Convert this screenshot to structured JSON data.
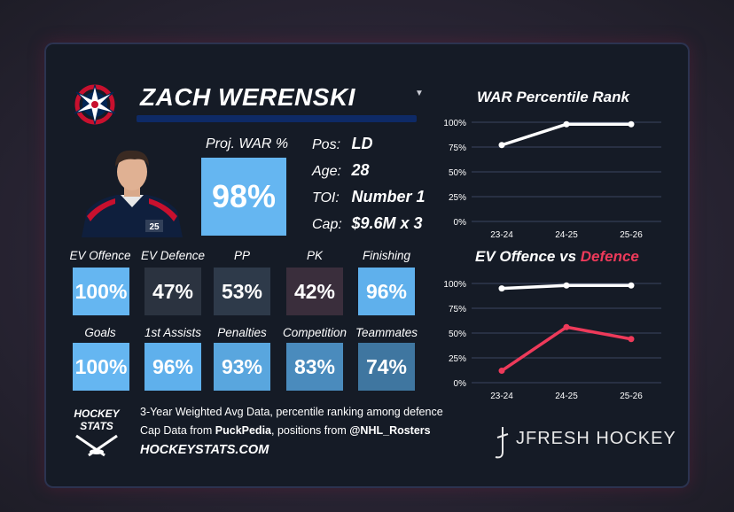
{
  "player": {
    "name": "ZACH WERENSKI",
    "proj_war_label": "Proj. WAR %",
    "proj_war_value": "98%",
    "team_logo": "columbus-blue-jackets-logo",
    "jersey_number": "25"
  },
  "info": [
    {
      "key": "Pos:",
      "value": "LD"
    },
    {
      "key": "Age:",
      "value": "28"
    },
    {
      "key": "TOI:",
      "value": "Number 1"
    },
    {
      "key": "Cap:",
      "value": "$9.6M x 3"
    }
  ],
  "stats_row1": [
    {
      "label": "EV Offence",
      "value": "100%",
      "color": "#65b6f1"
    },
    {
      "label": "EV Defence",
      "value": "47%",
      "color": "#2b3340"
    },
    {
      "label": "PP",
      "value": "53%",
      "color": "#2e3a4a"
    },
    {
      "label": "PK",
      "value": "42%",
      "color": "#3a2e3c"
    },
    {
      "label": "Finishing",
      "value": "96%",
      "color": "#5fb0ec"
    }
  ],
  "stats_row2": [
    {
      "label": "Goals",
      "value": "100%",
      "color": "#65b6f1"
    },
    {
      "label": "1st Assists",
      "value": "96%",
      "color": "#5fb0ec"
    },
    {
      "label": "Penalties",
      "value": "93%",
      "color": "#59a6de"
    },
    {
      "label": "Competition",
      "value": "83%",
      "color": "#4a8bbd"
    },
    {
      "label": "Teammates",
      "value": "74%",
      "color": "#3f76a0"
    }
  ],
  "footer": {
    "line1": "3-Year Weighted Avg Data, percentile ranking among defence",
    "line2_pre": "Cap Data from ",
    "line2_b1": "PuckPedia",
    "line2_mid": ", positions from ",
    "line2_b2": "@NHL_Rosters",
    "site": "HOCKEYSTATS.COM",
    "logo_line1": "HOCKEY",
    "logo_line2": "STATS",
    "brand": "JFRESH HOCKEY"
  },
  "chart_data": [
    {
      "type": "line",
      "title": "WAR Percentile Rank",
      "x": [
        "23-24",
        "24-25",
        "25-26"
      ],
      "yticks": [
        "100%",
        "75%",
        "50%",
        "25%",
        "0%"
      ],
      "ylim": [
        0,
        100
      ],
      "grid": true,
      "series": [
        {
          "values": [
            77,
            98,
            98
          ],
          "color": "#ffffff"
        }
      ]
    },
    {
      "type": "line",
      "title_pre": "EV Offence vs ",
      "title_red": "Defence",
      "x": [
        "23-24",
        "24-25",
        "25-26"
      ],
      "yticks": [
        "100%",
        "75%",
        "50%",
        "25%",
        "0%"
      ],
      "ylim": [
        0,
        100
      ],
      "grid": true,
      "series": [
        {
          "values": [
            95,
            98,
            98
          ],
          "color": "#ffffff"
        },
        {
          "values": [
            12,
            56,
            44
          ],
          "color": "#ee3a5a"
        }
      ]
    }
  ]
}
